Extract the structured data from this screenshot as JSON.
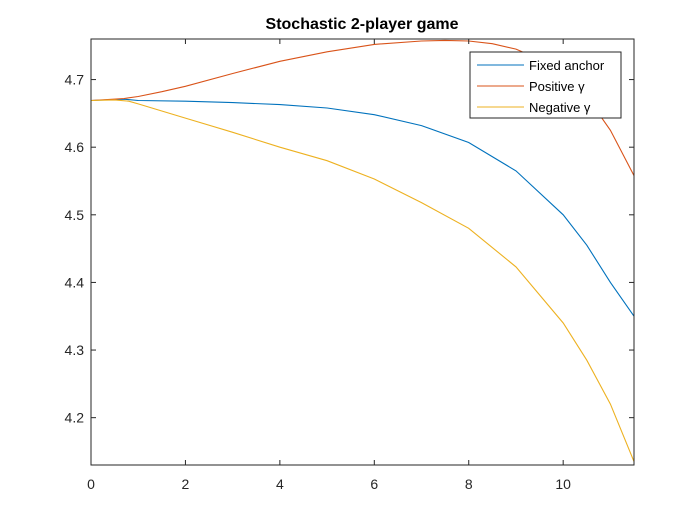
{
  "chart_data": {
    "type": "line",
    "title": "Stochastic 2-player game",
    "xlabel": "",
    "ylabel": "",
    "xlim": [
      0,
      11.5
    ],
    "ylim": [
      4.13,
      4.76
    ],
    "xticks": [
      0,
      2,
      4,
      6,
      8,
      10
    ],
    "yticks": [
      4.2,
      4.3,
      4.4,
      4.5,
      4.6,
      4.7
    ],
    "grid": false,
    "legend_position": "top-right",
    "series": [
      {
        "name": "Fixed anchor",
        "color": "#0072BD",
        "x": [
          0,
          0.7,
          1,
          2,
          3,
          4,
          5,
          6,
          7,
          8,
          9,
          10,
          10.5,
          11,
          11.5
        ],
        "y": [
          4.669,
          4.671,
          4.669,
          4.668,
          4.666,
          4.663,
          4.658,
          4.648,
          4.632,
          4.607,
          4.565,
          4.5,
          4.455,
          4.4,
          4.35
        ]
      },
      {
        "name": "Positive γ",
        "color": "#D95319",
        "x": [
          0,
          0.7,
          1,
          1.5,
          2,
          3,
          4,
          5,
          6,
          7,
          7.5,
          8,
          8.5,
          9,
          9.5,
          10,
          10.5,
          11,
          11.5
        ],
        "y": [
          4.669,
          4.672,
          4.675,
          4.682,
          4.69,
          4.709,
          4.727,
          4.741,
          4.752,
          4.757,
          4.758,
          4.757,
          4.753,
          4.745,
          4.73,
          4.71,
          4.675,
          4.625,
          4.558
        ]
      },
      {
        "name": "Negative γ",
        "color": "#EDB120",
        "x": [
          0,
          0.5,
          0.8,
          1,
          2,
          3,
          4,
          5,
          6,
          7,
          8,
          9,
          10,
          10.5,
          11,
          11.5
        ],
        "y": [
          4.669,
          4.67,
          4.668,
          4.664,
          4.643,
          4.622,
          4.6,
          4.58,
          4.553,
          4.518,
          4.48,
          4.423,
          4.34,
          4.285,
          4.22,
          4.135
        ]
      }
    ]
  }
}
